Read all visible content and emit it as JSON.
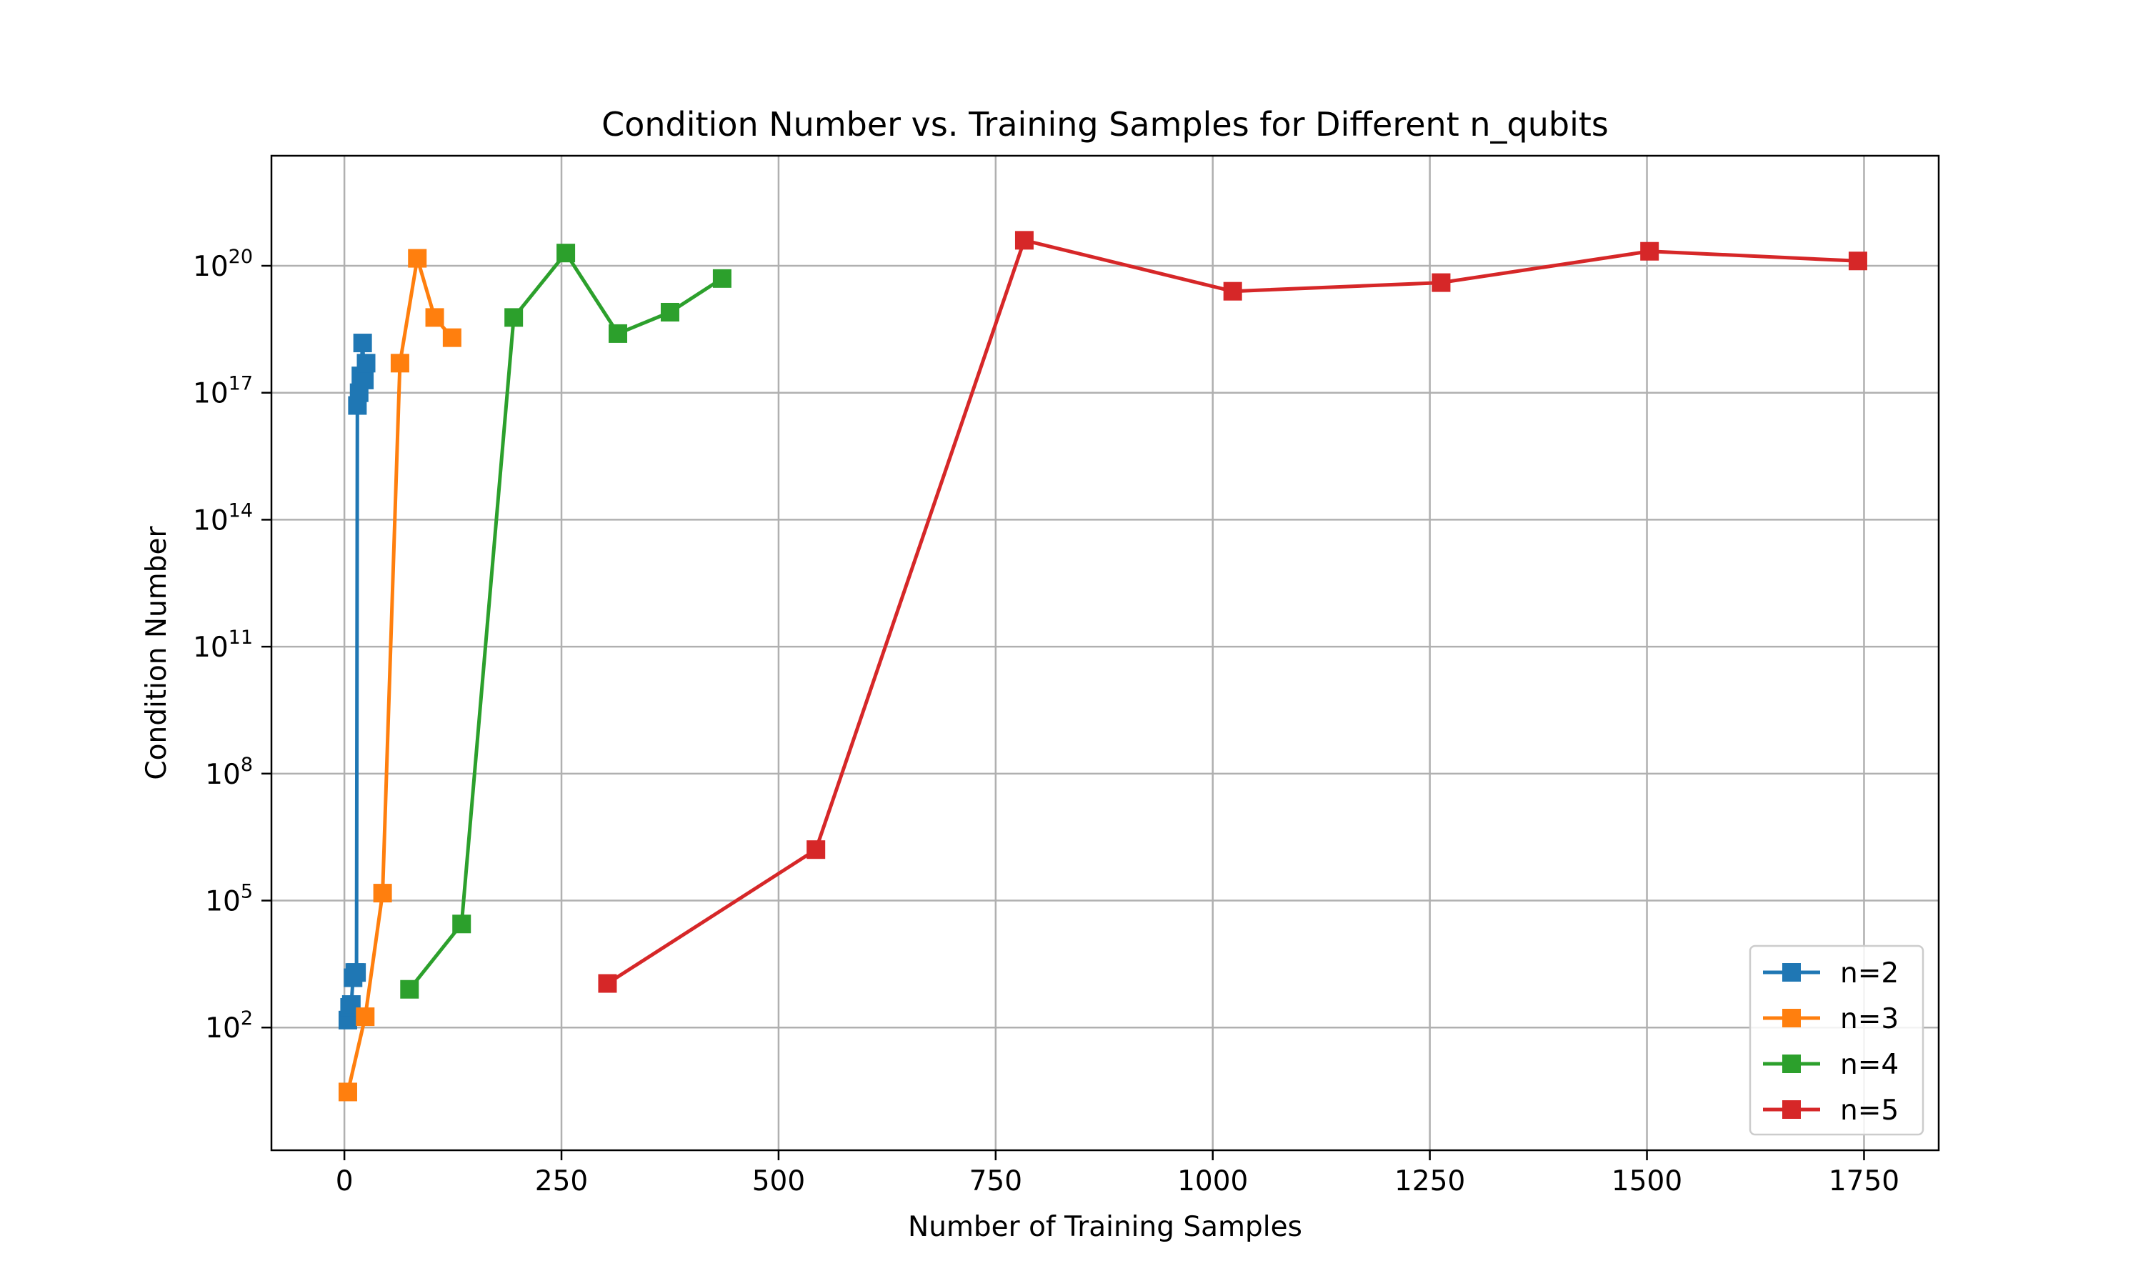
{
  "chart_data": {
    "type": "line",
    "title": "Condition Number vs. Training Samples for Different n_qubits",
    "xlabel": "Number of Training Samples",
    "ylabel": "Condition Number",
    "xscale": "linear",
    "yscale": "log",
    "xlim": [
      -84,
      1836
    ],
    "ylim_log10": [
      -0.9,
      22.6
    ],
    "grid": true,
    "legend_position": "lower-right",
    "x_ticks": [
      {
        "value": 0,
        "label": "0"
      },
      {
        "value": 250,
        "label": "250"
      },
      {
        "value": 500,
        "label": "500"
      },
      {
        "value": 750,
        "label": "750"
      },
      {
        "value": 1000,
        "label": "1000"
      },
      {
        "value": 1250,
        "label": "1250"
      },
      {
        "value": 1500,
        "label": "1500"
      },
      {
        "value": 1750,
        "label": "1750"
      }
    ],
    "y_ticks": [
      {
        "log10": 2,
        "base": "10",
        "exp": "2"
      },
      {
        "log10": 5,
        "base": "10",
        "exp": "5"
      },
      {
        "log10": 8,
        "base": "10",
        "exp": "8"
      },
      {
        "log10": 11,
        "base": "10",
        "exp": "11"
      },
      {
        "log10": 14,
        "base": "10",
        "exp": "14"
      },
      {
        "log10": 17,
        "base": "10",
        "exp": "17"
      },
      {
        "log10": 20,
        "base": "10",
        "exp": "20"
      }
    ],
    "series": [
      {
        "name": "n=2",
        "color": "#1f77b4",
        "marker": "square",
        "points": [
          {
            "x": 4,
            "y": 150
          },
          {
            "x": 6,
            "y": 300
          },
          {
            "x": 8,
            "y": 350
          },
          {
            "x": 10,
            "y": 1500
          },
          {
            "x": 12,
            "y": 2000
          },
          {
            "x": 14,
            "y": 2000
          },
          {
            "x": 15,
            "y": 5e+16
          },
          {
            "x": 17,
            "y": 1e+17
          },
          {
            "x": 19,
            "y": 2.5e+17
          },
          {
            "x": 21,
            "y": 1.5e+18
          },
          {
            "x": 23,
            "y": 2e+17
          },
          {
            "x": 25,
            "y": 5e+17
          }
        ]
      },
      {
        "name": "n=3",
        "color": "#ff7f0e",
        "marker": "square",
        "points": [
          {
            "x": 4,
            "y": 3
          },
          {
            "x": 24,
            "y": 180
          },
          {
            "x": 44,
            "y": 150000
          },
          {
            "x": 64,
            "y": 5e+17
          },
          {
            "x": 84,
            "y": 1.5e+20
          },
          {
            "x": 104,
            "y": 6e+18
          },
          {
            "x": 124,
            "y": 2e+18
          }
        ]
      },
      {
        "name": "n=4",
        "color": "#2ca02c",
        "marker": "square",
        "points": [
          {
            "x": 75,
            "y": 800
          },
          {
            "x": 135,
            "y": 28000
          },
          {
            "x": 195,
            "y": 6e+18
          },
          {
            "x": 255,
            "y": 2e+20
          },
          {
            "x": 315,
            "y": 2.5e+18
          },
          {
            "x": 375,
            "y": 8e+18
          },
          {
            "x": 435,
            "y": 5e+19
          }
        ]
      },
      {
        "name": "n=5",
        "color": "#d62728",
        "marker": "square",
        "points": [
          {
            "x": 303,
            "y": 1100
          },
          {
            "x": 543,
            "y": 1600000.0
          },
          {
            "x": 783,
            "y": 4e+20
          },
          {
            "x": 1023,
            "y": 2.5e+19
          },
          {
            "x": 1263,
            "y": 4e+19
          },
          {
            "x": 1503,
            "y": 2.2e+20
          },
          {
            "x": 1743,
            "y": 1.3e+20
          }
        ]
      }
    ]
  }
}
